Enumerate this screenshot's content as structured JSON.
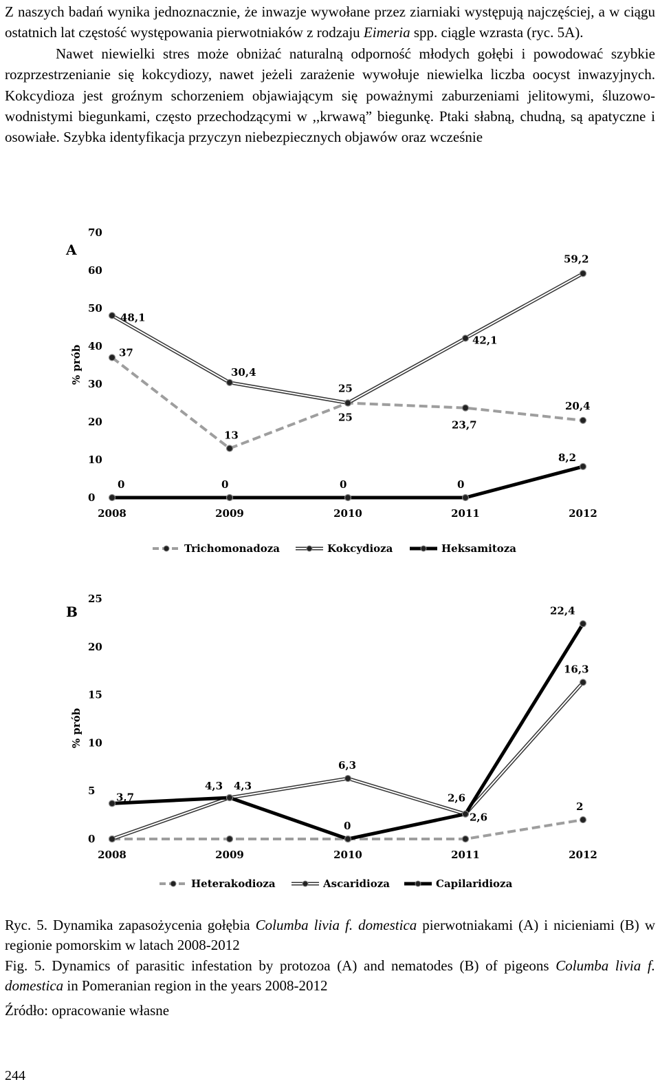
{
  "body_text": {
    "intro": "Z naszych badań wynika jednoznacznie, że inwazje wywołane przez ziarniaki występują najczęściej, a w ciągu ostatnich lat częstość występowania pierwotniaków z rodzaju ",
    "intro_italic": "Eimeria",
    "intro_rest": " spp. ciągle wzrasta (ryc. 5A).",
    "para2": "Nawet niewielki stres może obniżać naturalną odporność młodych gołębi i powodować szybkie rozprzestrzenianie się kokcydiozy, nawet jeżeli zarażenie wywołuje niewielka liczba oocyst inwazyjnych. Kokcydioza jest groźnym schorzeniem objawiającym się poważnymi zaburzeniami jelitowymi, śluzowo-wodnistymi biegunkami, często przechodzącymi w ,,krwawą” biegunkę. Ptaki słabną, chudną, są apatyczne i osowiałe. Szybka identyfikacja przyczyn niebezpiecznych objawów oraz wcześnie"
  },
  "chart_data": [
    {
      "type": "line",
      "panel": "A",
      "ylabel": "% prób",
      "x": [
        "2008",
        "2009",
        "2010",
        "2011",
        "2012"
      ],
      "ylim": [
        0,
        70
      ],
      "yticks": [
        "0",
        "10",
        "20",
        "30",
        "40",
        "50",
        "60",
        "70"
      ],
      "legend": "bottom",
      "series": [
        {
          "name": "Trichomonadoza",
          "style": "dashed",
          "color": "#9e9e9e",
          "values": [
            37,
            13,
            25,
            23.7,
            20.4
          ],
          "labels": [
            "37",
            "13",
            "25",
            "23,7",
            "20,4"
          ]
        },
        {
          "name": "Kokcydioza",
          "style": "double",
          "color": "#333333",
          "values": [
            48.1,
            30.4,
            25,
            42.1,
            59.2
          ],
          "labels": [
            "48,1",
            "30,4",
            "25",
            "42,1",
            "59,2"
          ]
        },
        {
          "name": "Heksamitoza",
          "style": "bold",
          "color": "#000000",
          "values": [
            0,
            0,
            0,
            0,
            8.2
          ],
          "labels": [
            "0",
            "0",
            "0",
            "0",
            "8,2"
          ]
        }
      ]
    },
    {
      "type": "line",
      "panel": "B",
      "ylabel": "% prób",
      "x": [
        "2008",
        "2009",
        "2010",
        "2011",
        "2012"
      ],
      "ylim": [
        0,
        25
      ],
      "yticks": [
        "0",
        "5",
        "10",
        "15",
        "20",
        "25"
      ],
      "legend": "bottom",
      "series": [
        {
          "name": "Heterakodioza",
          "style": "dashed",
          "color": "#9e9e9e",
          "values": [
            0,
            0,
            0,
            0,
            2
          ],
          "labels": [
            "",
            "",
            "",
            "",
            "2"
          ]
        },
        {
          "name": "Ascaridioza",
          "style": "double",
          "color": "#333333",
          "values": [
            0,
            4.3,
            6.3,
            2.6,
            16.3
          ],
          "labels": [
            "",
            "4,3",
            "6,3",
            "2,6",
            "16,3"
          ]
        },
        {
          "name": "Capilaridioza",
          "style": "bold",
          "color": "#000000",
          "values": [
            3.7,
            4.3,
            0,
            2.6,
            22.4
          ],
          "labels": [
            "3,7",
            "4,3",
            "0",
            "2,6",
            "22,4"
          ]
        }
      ]
    }
  ],
  "caption": {
    "pl_start": "Ryc. 5. Dynamika zapasożycenia gołębia ",
    "pl_italic": "Columba livia f. domestica",
    "pl_end": " pierwotniakami (A) i nicieniami (B) w regionie pomorskim w latach 2008-2012",
    "en_start": "Fig. 5. Dynamics of parasitic infestation by protozoa (A) and nematodes (B) of pigeons ",
    "en_italic": "Columba livia f. domestica",
    "en_end": " in Pomeranian region in the years 2008-2012",
    "source": "Źródło: opracowanie własne"
  },
  "page_number": "244"
}
